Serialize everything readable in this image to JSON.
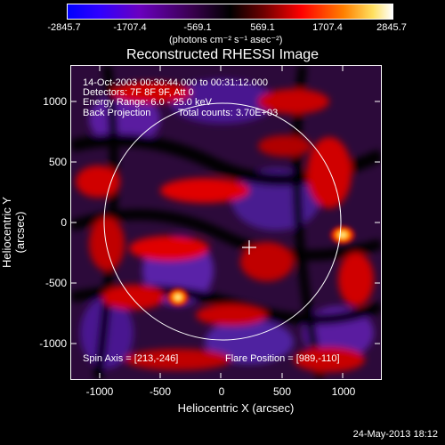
{
  "colorbar": {
    "ticks": [
      "-2845.7",
      "-1707.4",
      "-569.1",
      "569.1",
      "1707.4",
      "2845.7"
    ],
    "units": "(photons cm⁻² s⁻¹ asec⁻²)"
  },
  "title": "Reconstructed RHESSI Image",
  "info": {
    "time": "14-Oct-2003 00:30:44.000 to 00:31:12.000",
    "detectors": "Detectors: 7F 8F 9F, Att 0",
    "energy": "Energy Range: 6.0 - 25.0 keV",
    "method": "Back Projection",
    "counts": "Total counts: 3.70E+03",
    "spin_axis": "Spin Axis = [213,-246]",
    "flare_position": "Flare Position = [989,-110]"
  },
  "axes": {
    "xlabel": "Heliocentric X (arcsec)",
    "ylabel": "Heliocentric Y (arcsec)",
    "xticks": [
      "-1000",
      "-500",
      "0",
      "500",
      "1000"
    ],
    "yticks": [
      "1000",
      "500",
      "0",
      "-500",
      "-1000"
    ]
  },
  "footer": "24-May-2013 18:12",
  "colors": {
    "background": "#000000",
    "limb": "#ffffff",
    "colormap": [
      "#0000ff",
      "#5a00a0",
      "#3b0040",
      "#000000",
      "#800000",
      "#ff0000",
      "#ffa000",
      "#ffffe0"
    ]
  }
}
